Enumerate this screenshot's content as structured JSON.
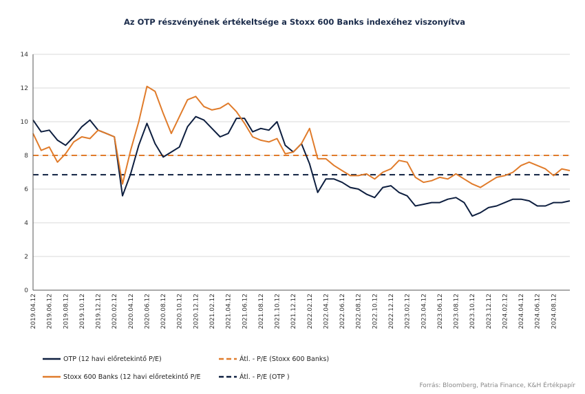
{
  "chart_data": {
    "type": "line",
    "title": "Az OTP részvényének értékeltsége a Stoxx 600 Banks indexéhez viszonyítva",
    "ylim": [
      0,
      14
    ],
    "yticks": [
      "0",
      "2",
      "4",
      "6",
      "8",
      "10",
      "12",
      "14"
    ],
    "xlim": [
      "2019.04.12",
      "2024.10.12"
    ],
    "xticks": [
      "2019.04.12",
      "2019.06.12",
      "2019.08.12",
      "2019.10.12",
      "2019.12.12",
      "2020.02.12",
      "2020.04.12",
      "2020.06.12",
      "2020.08.12",
      "2020.10.12",
      "2020.12.12",
      "2021.02.12",
      "2021.04.12",
      "2021.06.12",
      "2021.08.12",
      "2021.10.12",
      "2021.12.12",
      "2022.02.12",
      "2022.04.12",
      "2022.06.12",
      "2022.08.12",
      "2022.10.12",
      "2022.12.12",
      "2023.02.12",
      "2023.04.12",
      "2023.06.12",
      "2023.08.12",
      "2023.10.12",
      "2023.12.12",
      "2024.02.12",
      "2024.04.12",
      "2024.06.12",
      "2024.08.12"
    ],
    "grid": true,
    "legend_position": "bottom",
    "series": [
      {
        "name": "OTP (12 havi előretekintő P/E)",
        "color": "#0d1e3f",
        "style": "solid",
        "x": [
          "2019.04.12",
          "2019.05.12",
          "2019.06.12",
          "2019.07.12",
          "2019.08.12",
          "2019.09.12",
          "2019.10.12",
          "2019.11.12",
          "2019.12.12",
          "2020.01.12",
          "2020.02.12",
          "2020.03.12",
          "2020.04.12",
          "2020.05.12",
          "2020.06.12",
          "2020.07.12",
          "2020.08.12",
          "2020.09.12",
          "2020.10.12",
          "2020.11.12",
          "2020.12.12",
          "2021.01.12",
          "2021.02.12",
          "2021.03.12",
          "2021.04.12",
          "2021.05.12",
          "2021.06.12",
          "2021.07.12",
          "2021.08.12",
          "2021.09.12",
          "2021.10.12",
          "2021.11.12",
          "2021.12.12",
          "2022.01.12",
          "2022.02.12",
          "2022.03.12",
          "2022.04.12",
          "2022.05.12",
          "2022.06.12",
          "2022.07.12",
          "2022.08.12",
          "2022.09.12",
          "2022.10.12",
          "2022.11.12",
          "2022.12.12",
          "2023.01.12",
          "2023.02.12",
          "2023.03.12",
          "2023.04.12",
          "2023.05.12",
          "2023.06.12",
          "2023.07.12",
          "2023.08.12",
          "2023.09.12",
          "2023.10.12",
          "2023.11.12",
          "2023.12.12",
          "2024.01.12",
          "2024.02.12",
          "2024.03.12",
          "2024.04.12",
          "2024.05.12",
          "2024.06.12",
          "2024.07.12",
          "2024.08.12",
          "2024.09.12",
          "2024.10.12"
        ],
        "values": [
          10.1,
          9.4,
          9.5,
          8.9,
          8.6,
          9.1,
          9.7,
          10.1,
          9.5,
          9.3,
          9.1,
          5.6,
          6.9,
          8.6,
          9.9,
          8.7,
          7.9,
          8.2,
          8.5,
          9.7,
          10.3,
          10.1,
          9.6,
          9.1,
          9.3,
          10.2,
          10.2,
          9.4,
          9.6,
          9.5,
          10.0,
          8.6,
          8.2,
          8.7,
          7.5,
          5.8,
          6.6,
          6.6,
          6.4,
          6.1,
          6.0,
          5.7,
          5.5,
          6.1,
          6.2,
          5.8,
          5.6,
          5.0,
          5.1,
          5.2,
          5.2,
          5.4,
          5.5,
          5.2,
          4.4,
          4.6,
          4.9,
          5.0,
          5.2,
          5.4,
          5.4,
          5.3,
          5.0,
          5.0,
          5.2,
          5.2,
          5.3
        ]
      },
      {
        "name": "Stoxx 600 Banks (12 havi előretekintő P/E",
        "color": "#e07b2a",
        "style": "solid",
        "x": [
          "2019.04.12",
          "2019.05.12",
          "2019.06.12",
          "2019.07.12",
          "2019.08.12",
          "2019.09.12",
          "2019.10.12",
          "2019.11.12",
          "2019.12.12",
          "2020.01.12",
          "2020.02.12",
          "2020.03.12",
          "2020.04.12",
          "2020.05.12",
          "2020.06.12",
          "2020.07.12",
          "2020.08.12",
          "2020.09.12",
          "2020.10.12",
          "2020.11.12",
          "2020.12.12",
          "2021.01.12",
          "2021.02.12",
          "2021.03.12",
          "2021.04.12",
          "2021.05.12",
          "2021.06.12",
          "2021.07.12",
          "2021.08.12",
          "2021.09.12",
          "2021.10.12",
          "2021.11.12",
          "2021.12.12",
          "2022.01.12",
          "2022.02.12",
          "2022.03.12",
          "2022.04.12",
          "2022.05.12",
          "2022.06.12",
          "2022.07.12",
          "2022.08.12",
          "2022.09.12",
          "2022.10.12",
          "2022.11.12",
          "2022.12.12",
          "2023.01.12",
          "2023.02.12",
          "2023.03.12",
          "2023.04.12",
          "2023.05.12",
          "2023.06.12",
          "2023.07.12",
          "2023.08.12",
          "2023.09.12",
          "2023.10.12",
          "2023.11.12",
          "2023.12.12",
          "2024.01.12",
          "2024.02.12",
          "2024.03.12",
          "2024.04.12",
          "2024.05.12",
          "2024.06.12",
          "2024.07.12",
          "2024.08.12",
          "2024.09.12",
          "2024.10.12"
        ],
        "values": [
          9.3,
          8.3,
          8.5,
          7.6,
          8.1,
          8.8,
          9.1,
          9.0,
          9.5,
          9.3,
          9.1,
          6.3,
          8.3,
          10.0,
          12.1,
          11.8,
          10.5,
          9.3,
          10.3,
          11.3,
          11.5,
          10.9,
          10.7,
          10.8,
          11.1,
          10.6,
          9.9,
          9.1,
          8.9,
          8.8,
          9.0,
          8.1,
          8.2,
          8.7,
          9.6,
          7.8,
          7.8,
          7.4,
          7.1,
          6.8,
          6.8,
          6.9,
          6.6,
          7.0,
          7.2,
          7.7,
          7.6,
          6.7,
          6.4,
          6.5,
          6.7,
          6.6,
          6.9,
          6.6,
          6.3,
          6.1,
          6.4,
          6.7,
          6.8,
          7.0,
          7.4,
          7.6,
          7.4,
          7.2,
          6.8,
          7.2,
          7.1
        ]
      },
      {
        "name": "Átl. - P/E  (Stoxx 600 Banks)",
        "color": "#e07b2a",
        "style": "dashed",
        "constant": 8.0
      },
      {
        "name": "Átl. - P/E  (OTP )",
        "color": "#0d1e3f",
        "style": "dashed",
        "constant": 6.85
      }
    ],
    "source": "Forrás: Bloomberg, Patria Finance, K&H Értékpapír"
  }
}
